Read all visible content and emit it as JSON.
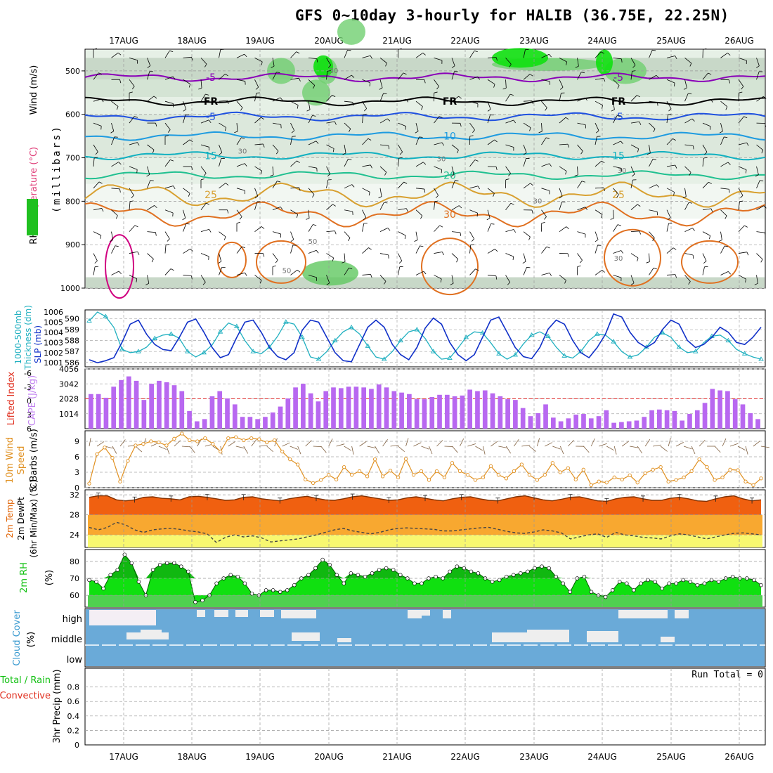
{
  "title": "GFS 0~10day 3-hourly for HALIB (36.75E, 22.25N)",
  "dates": [
    "17AUG",
    "18AUG",
    "19AUG",
    "20AUG",
    "21AUG",
    "22AUG",
    "23AUG",
    "24AUG",
    "25AUG",
    "26AUG"
  ],
  "run_total": "Run Total = 0",
  "chart_data": [
    {
      "type": "heatmap",
      "panel": "upper-air cross-section",
      "ylabel": "(millibars)",
      "left_labels": [
        "RH (%)",
        "Temperature (°C)",
        "Wind (m/s)"
      ],
      "yticks": [
        500,
        600,
        700,
        800,
        900,
        1000
      ],
      "ylim": [
        450,
        1000
      ],
      "temperature_contours": [
        {
          "label": "-5",
          "approx_pressure": 515,
          "color": "#8a00b8"
        },
        {
          "label": "FR",
          "approx_pressure": 570,
          "color": "#000000"
        },
        {
          "label": "-5",
          "approx_pressure": 605,
          "color": "#1e50e0"
        },
        {
          "label": "10",
          "approx_pressure": 650,
          "color": "#1e9be0"
        },
        {
          "label": "15",
          "approx_pressure": 695,
          "color": "#10b0c0"
        },
        {
          "label": "20",
          "approx_pressure": 740,
          "color": "#20c090"
        },
        {
          "label": "25",
          "approx_pressure": 785,
          "color": "#d8a030"
        },
        {
          "label": "30",
          "approx_pressure": 830,
          "color": "#e07020"
        }
      ],
      "rh_contour_labels": [
        "30",
        "30",
        "30",
        "30",
        "30",
        "50",
        "50",
        "30"
      ]
    },
    {
      "type": "line",
      "panel": "SLP and thickness",
      "left_labels": [
        "1000-500mb",
        "Thickness (dm)"
      ],
      "right_label": "SLP (mb)",
      "y_left_ticks": [
        586,
        587,
        588,
        589,
        590
      ],
      "y_right_ticks": [
        1001,
        1002,
        1003,
        1004,
        1005,
        1006
      ],
      "series": [
        {
          "name": "SLP (mb)",
          "color": "#1030c8",
          "values": [
            1001.3,
            1001.0,
            1001.2,
            1001.5,
            1003.0,
            1004.8,
            1005.2,
            1003.8,
            1002.8,
            1002.3,
            1002.2,
            1003.5,
            1005.0,
            1005.3,
            1004.0,
            1002.5,
            1001.5,
            1001.8,
            1003.5,
            1005.0,
            1005.2,
            1004.0,
            1002.5,
            1001.6,
            1001.3,
            1002.0,
            1004.2,
            1005.2,
            1005.0,
            1003.5,
            1002.0,
            1001.2,
            1001.1,
            1002.8,
            1004.5,
            1005.2,
            1004.5,
            1002.8,
            1001.8,
            1001.3,
            1002.5,
            1004.4,
            1005.4,
            1004.8,
            1003.0,
            1001.8,
            1001.2,
            1001.8,
            1003.5,
            1005.2,
            1005.5,
            1004.0,
            1002.5,
            1001.6,
            1001.4,
            1002.5,
            1004.3,
            1005.2,
            1004.8,
            1003.2,
            1002.0,
            1001.5,
            1002.5,
            1003.8,
            1005.8,
            1005.5,
            1004.0,
            1003.0,
            1002.5,
            1003.0,
            1004.3,
            1005.2,
            1004.8,
            1003.2,
            1002.5,
            1002.8,
            1003.5,
            1004.5,
            1004.0,
            1003.0,
            1002.8,
            1003.5,
            1004.5
          ]
        },
        {
          "name": "1000-500mb thickness (dm)",
          "color": "#20b0c0",
          "values": [
            589.8,
            590.6,
            590.2,
            589.2,
            587.2,
            586.9,
            587.0,
            587.4,
            588.2,
            588.5,
            588.6,
            588.2,
            587.0,
            586.5,
            586.9,
            587.6,
            588.8,
            589.6,
            589.3,
            588.0,
            587.0,
            586.8,
            587.4,
            588.4,
            589.7,
            589.5,
            588.3,
            586.5,
            586.3,
            587.0,
            588.0,
            588.8,
            589.2,
            588.6,
            587.5,
            586.5,
            586.3,
            587.0,
            588.0,
            588.8,
            589.0,
            588.2,
            587.0,
            586.3,
            586.4,
            587.3,
            588.3,
            588.8,
            588.7,
            587.8,
            586.8,
            586.3,
            586.7,
            587.7,
            588.5,
            588.8,
            588.4,
            587.4,
            586.6,
            586.4,
            587.0,
            588.0,
            588.6,
            588.5,
            587.9,
            587.0,
            586.5,
            586.7,
            587.4,
            588.3,
            588.7,
            588.3,
            587.4,
            586.9,
            587.0,
            587.8,
            588.4,
            588.5,
            588.0,
            587.2,
            586.8,
            586.5,
            586.3
          ]
        }
      ]
    },
    {
      "type": "bar",
      "panel": "CAPE and lifted index",
      "left_labels": [
        "Lifted Index",
        "CAPE (J/kg)"
      ],
      "y_left_ticks": [
        "-6",
        "-3",
        "0",
        "3",
        "6"
      ],
      "y_right_ticks": [
        1014,
        2028,
        3042,
        4056
      ],
      "series": [
        {
          "name": "CAPE (J/kg)",
          "color": "#b868f0",
          "values": [
            2350,
            2350,
            2100,
            2850,
            3300,
            3550,
            3250,
            1950,
            3050,
            3250,
            3150,
            2950,
            2550,
            1200,
            500,
            650,
            2200,
            2550,
            2050,
            1650,
            800,
            800,
            650,
            800,
            1100,
            1500,
            2050,
            2800,
            3050,
            2400,
            1850,
            2550,
            2800,
            2750,
            2850,
            2850,
            2800,
            2700,
            3000,
            2800,
            2550,
            2450,
            2350,
            2000,
            2000,
            2150,
            2300,
            2300,
            2200,
            2250,
            2650,
            2550,
            2600,
            2400,
            2200,
            2000,
            1950,
            1400,
            850,
            1050,
            1650,
            750,
            500,
            700,
            950,
            1000,
            700,
            850,
            1250,
            400,
            450,
            500,
            550,
            800,
            1250,
            1300,
            1250,
            1200,
            550,
            1000,
            1250,
            1750,
            2700,
            2600,
            2550,
            2000,
            1650,
            1050,
            650
          ]
        },
        {
          "name": "Lifted Index",
          "color": "#e03020",
          "values": []
        }
      ]
    },
    {
      "type": "line",
      "panel": "10m wind",
      "left_labels": [
        "10m Wind",
        "Speed",
        "& Barbs (m/s)"
      ],
      "yticks": [
        0,
        3,
        6,
        9
      ],
      "ylim": [
        0,
        10.5
      ],
      "series": [
        {
          "name": "10m wind speed (m/s)",
          "color": "#e09020",
          "values": [
            0.8,
            6.5,
            7.8,
            5.8,
            1.2,
            5.2,
            8.2,
            8.5,
            9.0,
            8.8,
            8.2,
            9.5,
            10.5,
            9.2,
            9.0,
            9.6,
            8.5,
            7.0,
            9.6,
            9.8,
            9.2,
            9.6,
            9.4,
            8.8,
            9.2,
            7.0,
            5.5,
            4.5,
            1.6,
            0.9,
            1.5,
            2.5,
            1.6,
            4.0,
            2.5,
            3.2,
            2.2,
            5.5,
            2.2,
            3.3,
            2.0,
            5.6,
            2.5,
            3.2,
            1.5,
            3.2,
            2.0,
            4.8,
            3.2,
            2.5,
            1.5,
            2.0,
            4.2,
            2.5,
            1.8,
            3.2,
            4.5,
            2.5,
            1.5,
            2.5,
            4.8,
            3.0,
            3.8,
            1.6,
            3.5,
            0.5,
            1.2,
            1.0,
            2.0,
            1.6,
            2.4,
            1.0,
            2.8,
            3.5,
            4.0,
            1.2,
            1.5,
            2.0,
            3.2,
            5.5,
            4.0,
            1.5,
            2.0,
            3.5,
            3.4,
            1.2,
            0.5,
            1.8
          ]
        }
      ]
    },
    {
      "type": "area",
      "panel": "2m temperature",
      "left_labels": [
        "2m Temp",
        "2m DewPt",
        "(6hr Min/Max) (°C)"
      ],
      "yticks": [
        24,
        28,
        32
      ],
      "ylim": [
        21.5,
        33
      ],
      "series": [
        {
          "name": "2m Temp (°C)",
          "color": "#e06000",
          "values": [
            31.5,
            31.8,
            31.8,
            31.0,
            30.8,
            31.0,
            31.5,
            31.6,
            31.3,
            31.2,
            31.0,
            31.6,
            31.7,
            31.5,
            31.2,
            30.9,
            31.0,
            31.5,
            31.6,
            31.2,
            31.0,
            30.8,
            31.2,
            31.5,
            31.7,
            31.3,
            31.0,
            30.9,
            31.2,
            31.6,
            31.8,
            31.5,
            31.2,
            30.9,
            31.0,
            31.4,
            31.6,
            31.3,
            31.0,
            30.8,
            31.2,
            31.5,
            31.6,
            31.2,
            30.9,
            30.8,
            31.2,
            31.6,
            31.8,
            31.4,
            31.0,
            30.8,
            31.1,
            31.5,
            31.6,
            31.2,
            30.8,
            30.7,
            31.2,
            31.5,
            31.6,
            31.2,
            30.9,
            30.9,
            31.3,
            31.5,
            31.2,
            30.8,
            30.7,
            31.2,
            31.6,
            31.8,
            31.2,
            30.8,
            31.0
          ]
        },
        {
          "name": "2m DewPt (°C)",
          "color": "#444444",
          "values": [
            25.5,
            25.0,
            25.5,
            26.5,
            26.0,
            25.0,
            24.5,
            25.0,
            25.2,
            25.3,
            25.1,
            24.8,
            24.6,
            24.2,
            22.5,
            23.5,
            24.0,
            23.6,
            23.8,
            23.4,
            22.6,
            22.8,
            23.0,
            23.2,
            23.6,
            24.0,
            24.5,
            25.0,
            25.3,
            24.8,
            24.5,
            24.2,
            24.5,
            25.0,
            25.3,
            25.4,
            25.3,
            25.2,
            25.1,
            24.8,
            24.8,
            25.0,
            25.2,
            25.4,
            25.5,
            25.1,
            24.7,
            24.4,
            24.3,
            24.6,
            25.0,
            24.8,
            24.4,
            23.2,
            23.6,
            24.0,
            24.2,
            23.5,
            24.5,
            24.0,
            23.8,
            23.5,
            23.4,
            23.2,
            23.8,
            24.2,
            24.0,
            23.6,
            23.2,
            23.6,
            24.0,
            24.3,
            24.4,
            24.2,
            24.0
          ]
        }
      ]
    },
    {
      "type": "area",
      "panel": "2m relative humidity",
      "left_labels": [
        "2m RH",
        "(%)"
      ],
      "yticks": [
        60,
        70,
        80
      ],
      "ylim": [
        53,
        87
      ],
      "series": [
        {
          "name": "2m RH (%)",
          "color": "#10c010",
          "values": [
            69,
            68,
            64,
            72,
            75,
            84,
            79,
            68,
            60,
            75,
            78,
            79,
            79,
            77,
            74,
            56,
            57,
            60,
            67,
            70,
            72,
            71,
            67,
            61,
            60,
            63,
            63,
            62,
            63,
            66,
            70,
            72,
            76,
            81,
            78,
            72,
            67,
            73,
            72,
            71,
            73,
            75,
            76,
            75,
            72,
            70,
            67,
            67,
            70,
            71,
            70,
            74,
            77,
            76,
            74,
            73,
            70,
            68,
            69,
            71,
            72,
            73,
            74,
            76,
            77,
            76,
            71,
            67,
            62,
            70,
            71,
            62,
            60,
            59,
            63,
            68,
            67,
            63,
            67,
            69,
            68,
            64,
            67,
            67,
            69,
            68,
            66,
            67,
            69,
            68,
            70,
            71,
            70,
            70,
            69,
            66
          ]
        }
      ]
    },
    {
      "type": "heatmap",
      "panel": "cloud cover",
      "left_labels": [
        "Cloud Cover",
        "(%)"
      ],
      "levels": [
        "high",
        "middle",
        "low"
      ]
    },
    {
      "type": "bar",
      "panel": "precipitation",
      "left_labels": [
        "Total / Rain",
        "Convective",
        "3hr Precip (mm)"
      ],
      "yticks": [
        "0",
        "0.2",
        "0.4",
        "0.6",
        "0.8"
      ],
      "ylim": [
        0,
        1
      ],
      "series": []
    }
  ]
}
